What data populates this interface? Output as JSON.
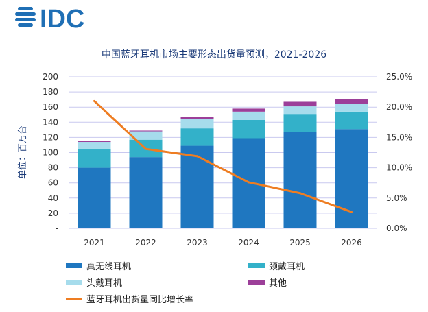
{
  "logo": {
    "text": "IDC",
    "color": "#1f6fb5"
  },
  "chart_data": {
    "type": "bar",
    "stacked": true,
    "title": "中国蓝牙耳机市场主要形态出货量预测，2021-2026",
    "ylabel": "单位：百万台",
    "categories": [
      "2021",
      "2022",
      "2023",
      "2024",
      "2025",
      "2026"
    ],
    "y_ticks": [
      "-",
      "20",
      "40",
      "60",
      "80",
      "100",
      "120",
      "140",
      "160",
      "180",
      "200"
    ],
    "ylim": [
      0,
      200
    ],
    "y2_ticks": [
      "0.0%",
      "5.0%",
      "10.0%",
      "15.0%",
      "20.0%",
      "25.0%"
    ],
    "y2lim": [
      0,
      25
    ],
    "grid": true,
    "series": [
      {
        "name": "真无线耳机",
        "color": "#1f77c0",
        "values": [
          80,
          94,
          109,
          119,
          127,
          131
        ]
      },
      {
        "name": "颈戴耳机",
        "color": "#33b1c9",
        "values": [
          25,
          23,
          23,
          24,
          24,
          23
        ]
      },
      {
        "name": "头戴耳机",
        "color": "#a6dcec",
        "values": [
          9,
          11,
          12,
          11,
          10,
          10
        ]
      },
      {
        "name": "其他",
        "color": "#9c3f99",
        "values": [
          1,
          1,
          3,
          4,
          6,
          7
        ]
      }
    ],
    "line": {
      "name": "蓝牙耳机出货量同比增长率",
      "color": "#ee7d22",
      "values": [
        21.0,
        13.1,
        11.9,
        7.6,
        5.8,
        2.7
      ],
      "axis": "right"
    },
    "legend": "bottom"
  }
}
